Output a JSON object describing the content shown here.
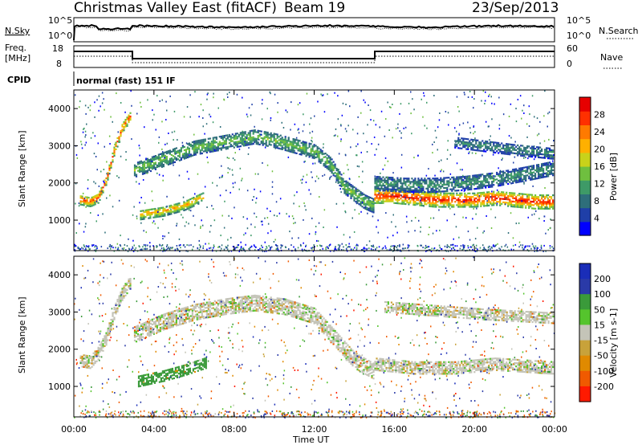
{
  "header": {
    "station": "Christmas Valley East (fitACF)",
    "beam": "Beam 19",
    "date": "23/Sep/2013"
  },
  "noise_panel": {
    "left_label": "N.Sky",
    "left_ticks": [
      "10^5",
      "10^0"
    ],
    "right_label": "N.Search",
    "right_ticks": [
      "10^5",
      "10^0"
    ]
  },
  "freq_panel": {
    "left_label_line1": "Freq.",
    "left_label_line2": "[MHz]",
    "left_ticks": [
      "18",
      "8"
    ],
    "right_label": "Nave",
    "right_ticks": [
      "60",
      "0"
    ]
  },
  "cpid": {
    "label": "CPID",
    "value": "normal (fast) 151 IF"
  },
  "colors": {
    "power_scale": [
      "#0000ff",
      "#1f3fa8",
      "#2e6e7a",
      "#3e9a67",
      "#6fbf3f",
      "#c8d21a",
      "#ffb000",
      "#ff7a00",
      "#ff3000",
      "#e60000"
    ],
    "velocity_scale": [
      "#1a2db8",
      "#2a3aa8",
      "#3a9a3a",
      "#55c42d",
      "#c4c4b8",
      "#c8a23a",
      "#e08a00",
      "#f05a00",
      "#ff1a00"
    ]
  },
  "chart_data": [
    {
      "type": "heatmap",
      "title": "",
      "xlabel": "Time UT",
      "ylabel": "Slant Range [km]",
      "x_ticks": [
        "00:00",
        "04:00",
        "08:00",
        "12:00",
        "16:00",
        "20:00",
        "00:00"
      ],
      "y_ticks": [
        "1000",
        "2000",
        "3000",
        "4000"
      ],
      "xlim_hours": [
        0,
        24
      ],
      "ylim_km": [
        180,
        4500
      ],
      "colorbar": {
        "label": "Power [dB]",
        "ticks": [
          "28",
          "24",
          "20",
          "16",
          "12",
          "8",
          "4"
        ],
        "range": [
          0,
          30
        ]
      },
      "bands": [
        {
          "name": "echo-a",
          "t": [
            0.3,
            0.8,
            1.2,
            1.6,
            2.0,
            2.4,
            2.8
          ],
          "r": [
            1550,
            1500,
            1600,
            2100,
            2900,
            3500,
            3800
          ],
          "width_km": 260,
          "level_db": 24
        },
        {
          "name": "echo-b",
          "t": [
            3.0,
            4.0,
            5.0,
            6.0,
            7.0,
            8.0,
            9.0,
            10.0,
            11.0,
            12.0,
            12.8,
            13.5,
            14.5,
            15.0
          ],
          "r": [
            2350,
            2550,
            2750,
            2950,
            3050,
            3150,
            3250,
            3150,
            3000,
            2850,
            2500,
            1900,
            1500,
            1380
          ],
          "width_km": 380,
          "level_db": 13
        },
        {
          "name": "echo-c",
          "t": [
            3.3,
            4.5,
            5.5,
            6.5
          ],
          "r": [
            1150,
            1250,
            1400,
            1650
          ],
          "width_km": 260,
          "level_db": 20
        },
        {
          "name": "echo-d",
          "t": [
            15.0,
            16.0,
            17.0,
            18.0,
            19.0,
            20.0,
            21.0,
            22.0,
            23.0,
            23.9
          ],
          "r": [
            1650,
            1650,
            1600,
            1550,
            1550,
            1550,
            1600,
            1550,
            1500,
            1500
          ],
          "width_km": 380,
          "level_db": 26
        },
        {
          "name": "echo-e",
          "t": [
            15.0,
            16.5,
            18.0,
            19.5,
            21.0,
            22.5,
            23.9
          ],
          "r": [
            2000,
            1950,
            1950,
            2000,
            2100,
            2250,
            2400
          ],
          "width_km": 380,
          "level_db": 10
        },
        {
          "name": "echo-f",
          "t": [
            19.0,
            20.5,
            22.0,
            23.9
          ],
          "r": [
            3100,
            3000,
            2900,
            2800
          ],
          "width_km": 300,
          "level_db": 9
        }
      ]
    },
    {
      "type": "heatmap",
      "title": "",
      "xlabel": "Time UT",
      "ylabel": "Slant Range [km]",
      "x_ticks": [
        "00:00",
        "04:00",
        "08:00",
        "12:00",
        "16:00",
        "20:00",
        "00:00"
      ],
      "y_ticks": [
        "1000",
        "2000",
        "3000",
        "4000"
      ],
      "xlim_hours": [
        0,
        24
      ],
      "ylim_km": [
        180,
        4500
      ],
      "colorbar": {
        "label": "Velocity [m s-1]",
        "ticks": [
          "200",
          "100",
          "50",
          "15",
          "-15",
          "-50",
          "-100",
          "-200"
        ],
        "range": [
          -250,
          250
        ]
      },
      "bands": [
        {
          "name": "vel-a",
          "t": [
            0.3,
            0.8,
            1.2,
            1.6,
            2.0,
            2.4,
            2.8
          ],
          "r": [
            1700,
            1650,
            1900,
            2300,
            3000,
            3500,
            3800
          ],
          "width_km": 320,
          "velocity": 0
        },
        {
          "name": "vel-b",
          "t": [
            3.0,
            4.5,
            6.0,
            7.5,
            9.0,
            10.5,
            12.0,
            13.0,
            14.0,
            15.0
          ],
          "r": [
            2400,
            2750,
            3000,
            3150,
            3250,
            3150,
            2900,
            2300,
            1700,
            1400
          ],
          "width_km": 420,
          "velocity": 0
        },
        {
          "name": "vel-c",
          "t": [
            3.2,
            4.5,
            5.5,
            6.6
          ],
          "r": [
            1150,
            1300,
            1450,
            1650
          ],
          "width_km": 300,
          "velocity": 70
        },
        {
          "name": "vel-d",
          "t": [
            15.0,
            17.0,
            19.0,
            21.0,
            23.9
          ],
          "r": [
            1600,
            1500,
            1500,
            1600,
            1500
          ],
          "width_km": 320,
          "velocity": 0
        },
        {
          "name": "vel-e",
          "t": [
            15.5,
            18.0,
            20.5,
            23.9
          ],
          "r": [
            3150,
            3050,
            2950,
            2850
          ],
          "width_km": 300,
          "velocity": 0
        }
      ]
    }
  ]
}
